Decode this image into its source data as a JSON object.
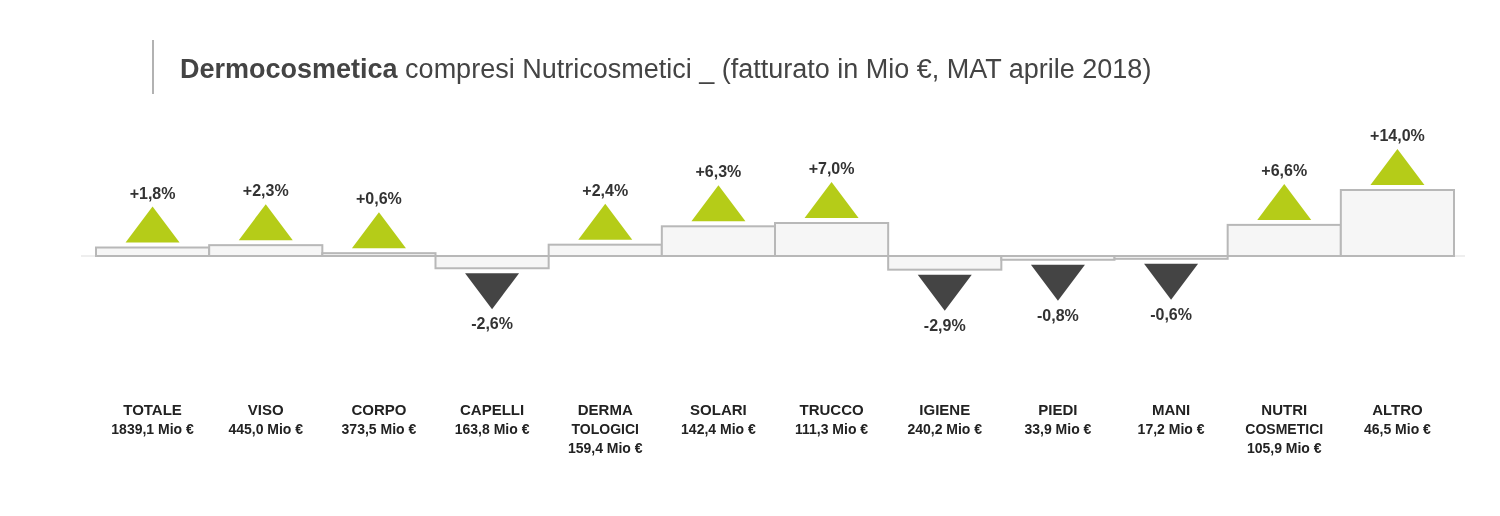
{
  "chart_data": {
    "type": "bar",
    "title": "Dermocosmetica compresi Nutricosmetici _ (fatturato in Mio €, MAT aprile 2018)",
    "categories": [
      "TOTALE\n1839,1 Mio €",
      "VISO\n445,0 Mio €",
      "CORPO\n373,5 Mio €",
      "CAPELLI\n163,8 Mio €",
      "DERMA\nTOLOGICI\n159,4 Mio €",
      "SOLARI\n142,4 Mio €",
      "TRUCCO\n111,3 Mio €",
      "IGIENE\n240,2 Mio €",
      "PIEDI\n33,9 Mio €",
      "MANI\n17,2 Mio €",
      "NUTRI\nCOSMETICI\n105,9 Mio €",
      "ALTRO\n46,5 Mio €"
    ],
    "values": [
      1.8,
      2.3,
      0.6,
      -2.6,
      2.4,
      6.3,
      7.0,
      -2.9,
      -0.8,
      -0.6,
      6.6,
      14.0
    ],
    "value_labels": [
      "+1,8%",
      "+2,3%",
      "+0,6%",
      "-2,6%",
      "+2,4%",
      "+6,3%",
      "+7,0%",
      "-2,9%",
      "-0,8%",
      "-0,6%",
      "+6,6%",
      "+14,0%"
    ],
    "color": "#f6f6f6"
  }
}
